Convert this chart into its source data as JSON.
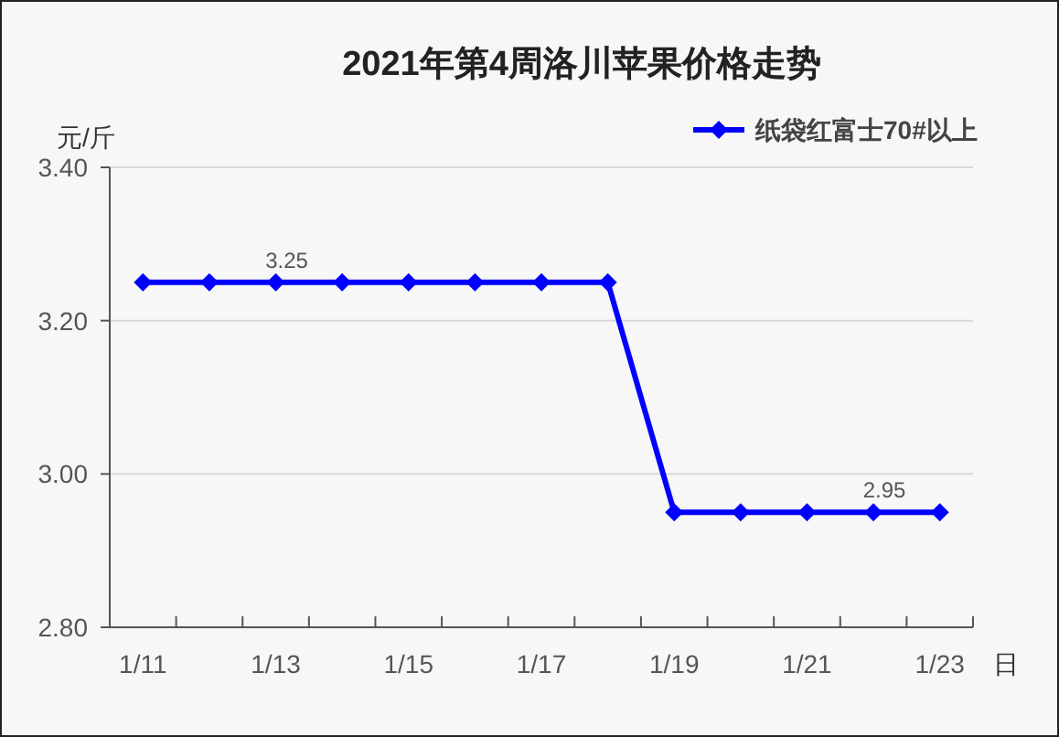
{
  "chart_data": {
    "type": "line",
    "title": "2021年第4周洛川苹果价格走势",
    "ylabel": "元/斤",
    "xlabel": "日",
    "categories": [
      "1/11",
      null,
      "1/13",
      null,
      "1/15",
      null,
      "1/17",
      null,
      "1/19",
      null,
      "1/21",
      null,
      "1/23"
    ],
    "series": [
      {
        "name": "纸袋红富士70#以上",
        "color": "#0000ff",
        "values": [
          3.25,
          3.25,
          3.25,
          3.25,
          3.25,
          3.25,
          3.25,
          3.25,
          2.95,
          2.95,
          2.95,
          2.95,
          2.95
        ],
        "value_labels": [
          null,
          null,
          "3.25",
          null,
          null,
          null,
          null,
          null,
          null,
          null,
          null,
          "2.95",
          null
        ]
      }
    ],
    "ylim": [
      2.8,
      3.4
    ],
    "yticks": [
      {
        "value": 2.8,
        "label": "2.80"
      },
      {
        "value": 3.0,
        "label": "3.00"
      },
      {
        "value": 3.2,
        "label": "3.20"
      },
      {
        "value": 3.4,
        "label": "3.40"
      }
    ],
    "grid": "y",
    "legend": "top right",
    "marker": "diamond",
    "line_style": "solid"
  }
}
